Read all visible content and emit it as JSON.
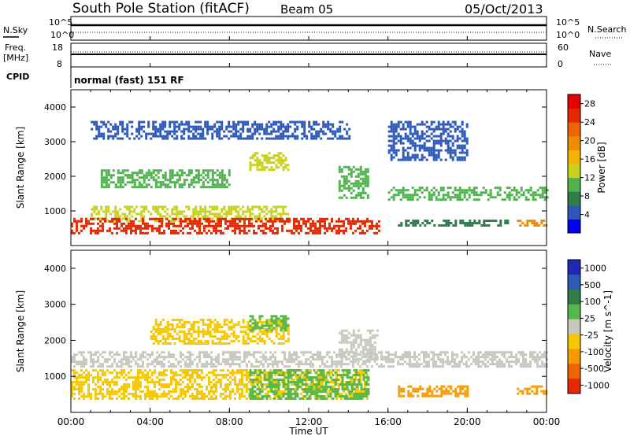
{
  "header": {
    "title": "South Pole Station (fitACF)",
    "beam": "Beam 05",
    "date": "05/Oct/2013"
  },
  "time_axis": {
    "label": "Time UT",
    "ticks": [
      "00:00",
      "04:00",
      "08:00",
      "12:00",
      "16:00",
      "20:00",
      "00:00"
    ]
  },
  "status_panels": {
    "nsky_label": "N.Sky",
    "nsearch_label": "N.Search",
    "noise_ticks": [
      "10^5",
      "10^0"
    ],
    "freq_label_1": "Freq.",
    "freq_label_2": "[MHz]",
    "freq_ticks": [
      "18",
      "8"
    ],
    "nave_label": "Nave",
    "nave_ticks": [
      "60",
      "0"
    ],
    "cpid_label": "CPID",
    "cpid_text": "normal (fast) 151 RF"
  },
  "colors": {
    "power": [
      "#0000f0",
      "#2d58b9",
      "#2f7b4a",
      "#4fb24f",
      "#c8d21e",
      "#f5b400",
      "#f08c00",
      "#f06400",
      "#e62800",
      "#e60000"
    ],
    "velocity": [
      "#1e2ab4",
      "#2d5ab4",
      "#2f7b4a",
      "#55b94a",
      "#c8c8c0",
      "#f5c800",
      "#f59b00",
      "#f06400",
      "#e62800"
    ]
  },
  "chart_data": [
    {
      "type": "heatmap",
      "name": "power",
      "xlabel": "",
      "ylabel": "Slant Range [km]",
      "x_range": [
        0,
        24
      ],
      "ylim": [
        0,
        4500
      ],
      "y_ticks": [
        "1000",
        "2000",
        "3000",
        "4000"
      ],
      "colorbar": {
        "label": "Power [dB]",
        "ticks": [
          "4",
          "8",
          "12",
          "16",
          "20",
          "24",
          "28"
        ],
        "range": [
          0,
          30
        ]
      },
      "bands": [
        {
          "t": [
            1.0,
            11.0
          ],
          "r": [
            700,
            1150
          ],
          "value": 12
        },
        {
          "t": [
            1.5,
            8.0
          ],
          "r": [
            1700,
            2200
          ],
          "value": 10
        },
        {
          "t": [
            9.0,
            11.0
          ],
          "r": [
            2200,
            2700
          ],
          "value": 14
        },
        {
          "t": [
            1.0,
            14.0
          ],
          "r": [
            3100,
            3600
          ],
          "value": 4
        },
        {
          "t": [
            13.5,
            15.0
          ],
          "r": [
            1400,
            2300
          ],
          "value": 10
        },
        {
          "t": [
            16.0,
            24.0
          ],
          "r": [
            1300,
            1700
          ],
          "value": 10
        },
        {
          "t": [
            16.0,
            20.0
          ],
          "r": [
            2500,
            3600
          ],
          "value": 4
        },
        {
          "t": [
            16.5,
            22.0
          ],
          "r": [
            550,
            750
          ],
          "value": 8
        },
        {
          "t": [
            22.5,
            24.0
          ],
          "r": [
            550,
            750
          ],
          "value": 20
        },
        {
          "t": [
            0.0,
            15.5
          ],
          "r": [
            350,
            800
          ],
          "value": 26
        }
      ]
    },
    {
      "type": "heatmap",
      "name": "velocity",
      "xlabel": "Time UT",
      "ylabel": "Slant Range [km]",
      "x_range": [
        0,
        24
      ],
      "ylim": [
        0,
        4500
      ],
      "y_ticks": [
        "1000",
        "2000",
        "3000",
        "4000"
      ],
      "colorbar": {
        "label": "Velocity [m s^-1]",
        "ticks": [
          "1000",
          "500",
          "100",
          "25",
          "-25",
          "-100",
          "-500",
          "-1000"
        ],
        "range": [
          -1200,
          1200
        ]
      },
      "bands": [
        {
          "t": [
            0.0,
            24.0
          ],
          "r": [
            1300,
            1700
          ],
          "value": 0
        },
        {
          "t": [
            0.0,
            15.0
          ],
          "r": [
            400,
            1200
          ],
          "value": -300
        },
        {
          "t": [
            9.0,
            15.0
          ],
          "r": [
            400,
            1200
          ],
          "value": 150
        },
        {
          "t": [
            4.0,
            11.0
          ],
          "r": [
            1900,
            2600
          ],
          "value": -200
        },
        {
          "t": [
            9.0,
            11.0
          ],
          "r": [
            2300,
            2700
          ],
          "value": 150
        },
        {
          "t": [
            13.5,
            15.5
          ],
          "r": [
            1400,
            2300
          ],
          "value": 0
        },
        {
          "t": [
            16.5,
            20.0
          ],
          "r": [
            450,
            750
          ],
          "value": -400
        },
        {
          "t": [
            22.5,
            24.0
          ],
          "r": [
            550,
            750
          ],
          "value": -400
        }
      ]
    }
  ]
}
